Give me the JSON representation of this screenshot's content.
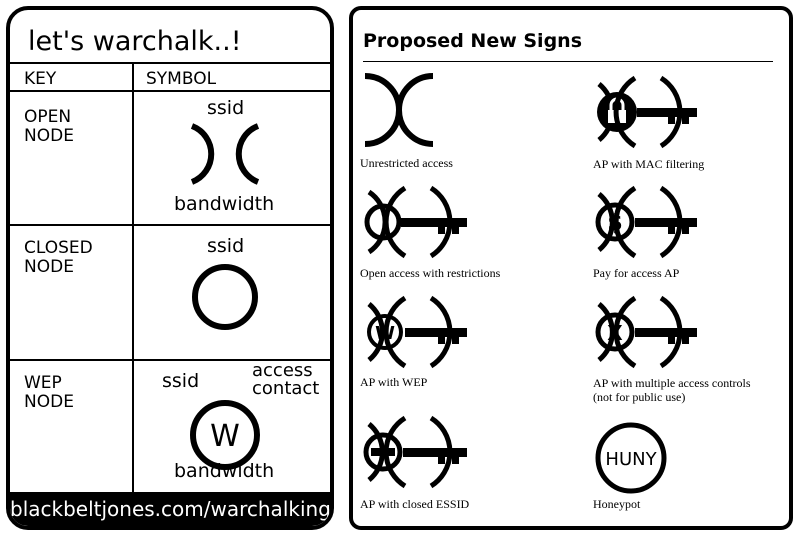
{
  "card": {
    "title": "let's warchalk..!",
    "key_header": "KEY",
    "symbol_header": "SYMBOL",
    "rows": [
      {
        "key_line1": "OPEN",
        "key_line2": "NODE",
        "top_label": "ssid",
        "bottom_label": "bandwidth"
      },
      {
        "key_line1": "CLOSED",
        "key_line2": "NODE",
        "top_label": "ssid"
      },
      {
        "key_line1": "WEP",
        "key_line2": "NODE",
        "top_label": "ssid",
        "right_label_line1": "access",
        "right_label_line2": "contact",
        "circle_letter": "W",
        "bottom_label": "bandwidth"
      }
    ],
    "footer": "blackbeltjones.com/warchalking"
  },
  "panel": {
    "title": "Proposed New Signs",
    "signs": [
      {
        "caption": "Unrestricted access",
        "icon": "open-node-brackets-icon"
      },
      {
        "caption": "AP with MAC filtering",
        "icon": "padlock-key-icon"
      },
      {
        "caption": "Open access with restrictions",
        "icon": "open-circle-key-icon"
      },
      {
        "caption": "Pay for access AP",
        "icon": "dollar-key-icon",
        "letter": "$"
      },
      {
        "caption": "AP with WEP",
        "icon": "wep-key-icon",
        "letter": "W"
      },
      {
        "caption_line1": "AP with multiple access controls",
        "caption_line2": "(not for public use)",
        "icon": "multiple-controls-key-icon",
        "letter": "X"
      },
      {
        "caption": "AP with closed ESSID",
        "icon": "closed-essid-key-icon"
      },
      {
        "caption": "Honeypot",
        "icon": "honeypot-icon",
        "letter": "HUNY"
      }
    ]
  }
}
